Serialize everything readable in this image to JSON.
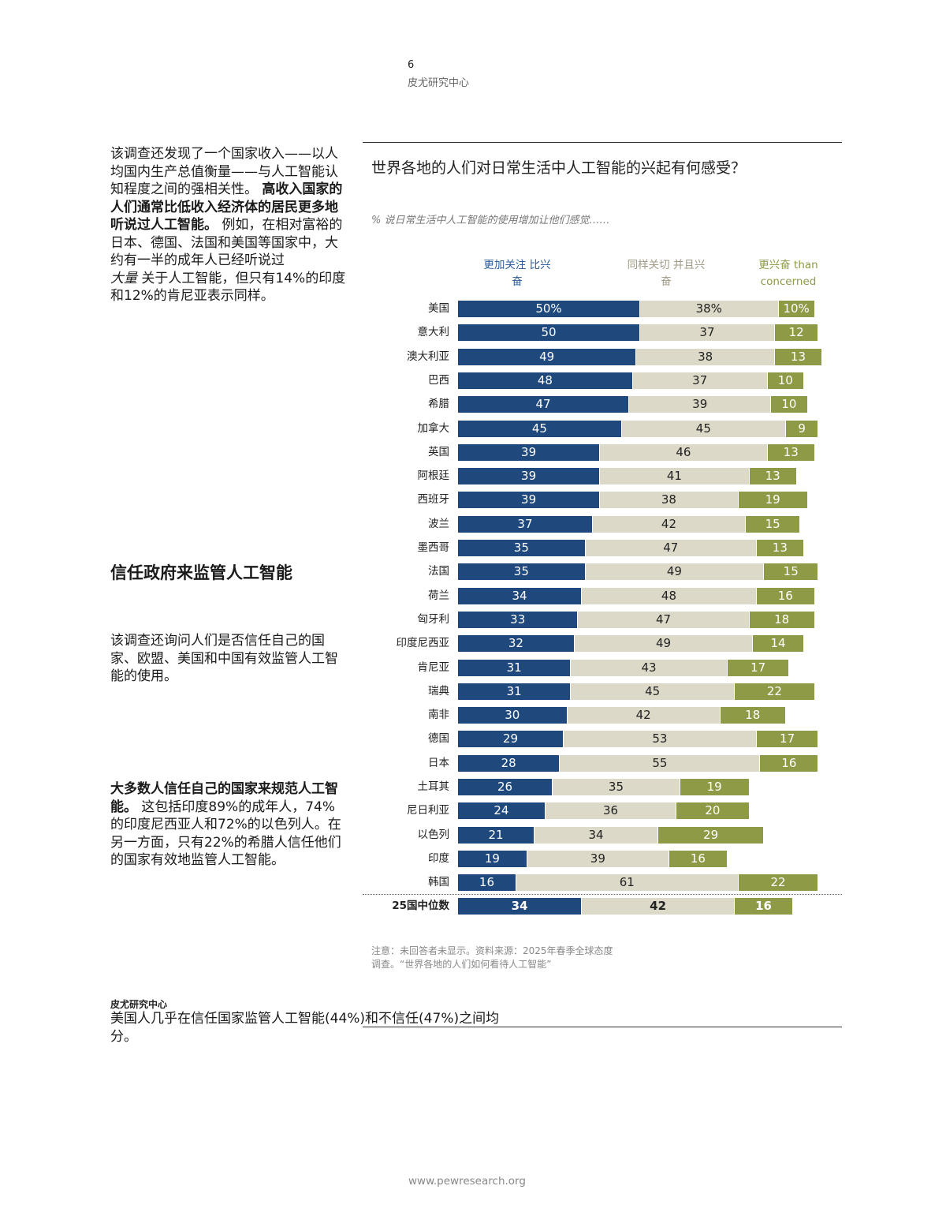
{
  "header": {
    "page_number": "6",
    "org": "皮尤研究中心"
  },
  "left": {
    "para1_a": "该调查还发现了一个国家收入——以人均国内生产总值衡量——与人工智能认知程度之间的强相关性。",
    "para1_bold": "高收入国家的人们通常比低收入经济体的居民更多地听说过人工智能。",
    "para1_b": "例如，在相对富裕的日本、德国、法国和美国等国家中，大约有一半的成年人已经听说过",
    "para1_italic": "大量",
    "para1_c": "关于人工智能，但只有14%的印度和12%的肯尼亚表示同样。",
    "heading": "信任政府来监管人工智能",
    "para2": "该调查还询问人们是否信任自己的国家、欧盟、美国和中国有效监管人工智能的使用。",
    "para3_bold": "大多数人信任自己的国家来规范人工智能。",
    "para3": "这包括印度89%的成年人，74%的印度尼西亚人和72%的以色列人。在另一方面，只有22%的希腊人信任他们的国家有效地监管人工智能。"
  },
  "chart_data": {
    "type": "bar",
    "stacked": true,
    "orientation": "horizontal",
    "title": "世界各地的人们对日常生活中人工智能的兴起有何感受？",
    "subtitle": "% 说日常生活中人工智能的使用增加让他们感觉……",
    "legend": [
      "更加关注 比兴奋",
      "同样关切 并且兴奋",
      "更兴奋 than concerned"
    ],
    "legend_placement": "top",
    "colors": [
      "#1f497d",
      "#dcd9c8",
      "#8e9a45"
    ],
    "categories": [
      "美国",
      "意大利",
      "澳大利亚",
      "巴西",
      "希腊",
      "加拿大",
      "英国",
      "阿根廷",
      "西班牙",
      "波兰",
      "墨西哥",
      "法国",
      "荷兰",
      "匈牙利",
      "印度尼西亚",
      "肯尼亚",
      "瑞典",
      "南非",
      "德国",
      "日本",
      "土耳其",
      "尼日利亚",
      "以色列",
      "印度",
      "韩国"
    ],
    "series": [
      {
        "name": "更加关注 比兴奋",
        "values": [
          50,
          50,
          49,
          48,
          47,
          45,
          39,
          39,
          39,
          37,
          35,
          35,
          34,
          33,
          32,
          31,
          31,
          30,
          29,
          28,
          26,
          24,
          21,
          19,
          16
        ]
      },
      {
        "name": "同样关切 并且兴奋",
        "values": [
          38,
          37,
          38,
          37,
          39,
          45,
          46,
          41,
          38,
          42,
          47,
          49,
          48,
          47,
          49,
          43,
          45,
          42,
          53,
          55,
          35,
          36,
          34,
          39,
          61
        ]
      },
      {
        "name": "更兴奋 than concerned",
        "values": [
          10,
          12,
          13,
          10,
          10,
          9,
          13,
          13,
          19,
          15,
          13,
          15,
          16,
          18,
          14,
          17,
          22,
          18,
          17,
          16,
          19,
          20,
          29,
          16,
          22
        ]
      }
    ],
    "first_row_suffix": "%",
    "median": {
      "label": "25国中位数",
      "values": [
        34,
        42,
        16
      ]
    },
    "note": "注意：未回答者未显示。资料来源：2025年春季全球态度调查。“世界各地的人们如何看待人工智能”",
    "source": "皮尤研究中心"
  },
  "footer": {
    "text": "美国人几乎在信任国家监管人工智能(44%)和不信任(47%)之间均分。",
    "url": "www.pewresearch.org"
  }
}
